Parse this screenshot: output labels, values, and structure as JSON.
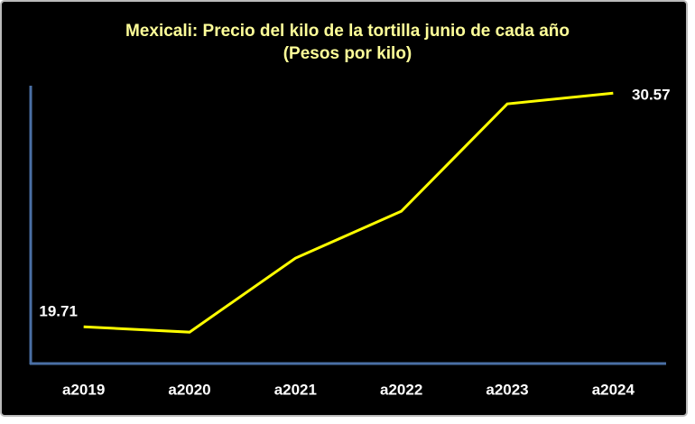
{
  "chart_data": {
    "type": "line",
    "title": "Mexicali: Precio del kilo de la tortilla junio de cada año",
    "subtitle": "(Pesos por kilo)",
    "categories": [
      "a2019",
      "a2020",
      "a2021",
      "a2022",
      "a2023",
      "a2024"
    ],
    "values": [
      19.71,
      19.46,
      22.9,
      25.08,
      30.07,
      30.57
    ],
    "color": "#ffff00",
    "ylim": [
      18,
      31
    ]
  }
}
